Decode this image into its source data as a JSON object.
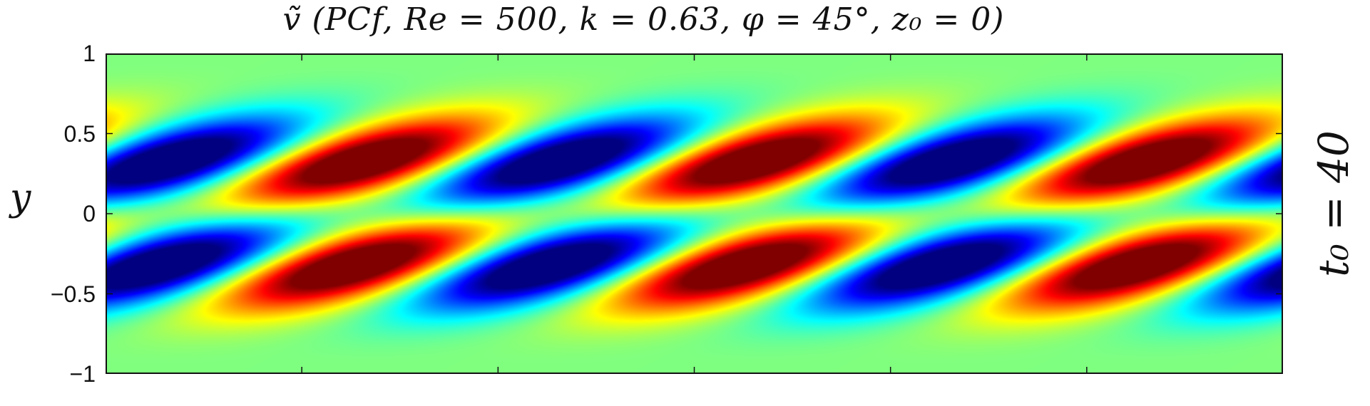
{
  "chart_data": {
    "type": "heatmap",
    "title": "ṽ  (PCf,  Re =  500,  k = 0.63,  φ = 45°,  z₀ =  0)",
    "ylabel": "y",
    "right_label": "t₀ = 40",
    "xlabel": "",
    "ylim": [
      -1,
      1
    ],
    "yticks": [
      {
        "value": 1,
        "label": "1"
      },
      {
        "value": 0.5,
        "label": "0.5"
      },
      {
        "value": 0,
        "label": "0"
      },
      {
        "value": -0.5,
        "label": "−0.5"
      },
      {
        "value": -1,
        "label": "−1"
      }
    ],
    "xticks_count": 7,
    "colormap": "jet",
    "grid": false,
    "pattern": {
      "periods_shown": 3,
      "cell_peak_y": 0.4,
      "cell_width_fraction_of_period": 0.25,
      "extrema": [
        {
          "kind": "min",
          "y": 0.4
        },
        {
          "kind": "max",
          "y": -0.4
        }
      ]
    }
  }
}
